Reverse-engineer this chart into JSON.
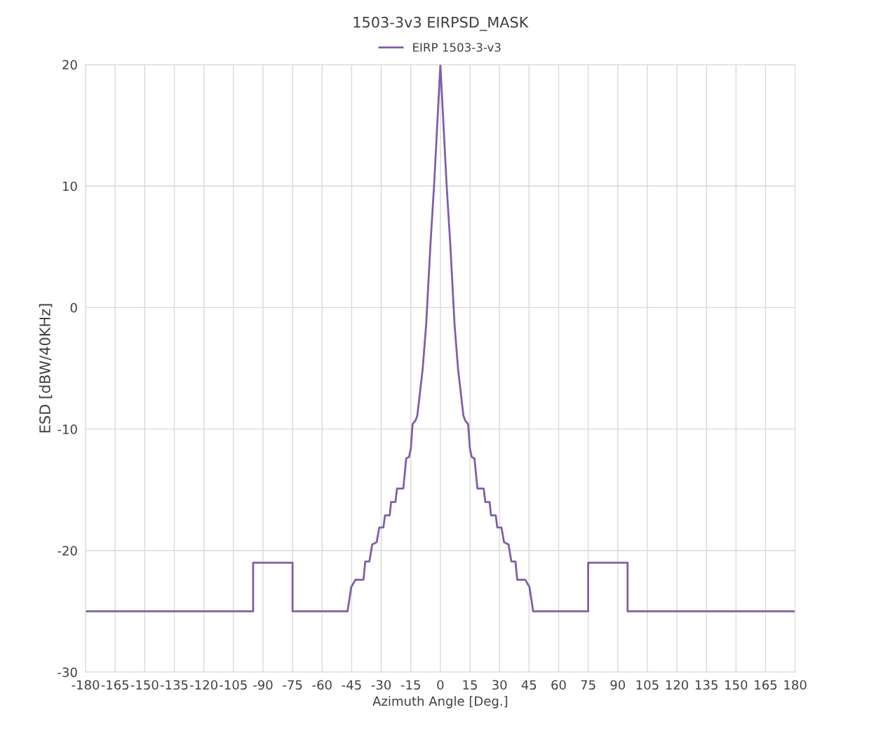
{
  "chart_data": {
    "type": "line",
    "title": "1503-3v3 EIRPSD_MASK",
    "xlabel": "Azimuth Angle [Deg.]",
    "ylabel": "ESD [dBW/40KHz]",
    "series": [
      {
        "name": "EIRP 1503-3-v3",
        "color": "#7f5fa8",
        "x": [
          -180,
          -95,
          -95,
          -75,
          -75,
          -47.1,
          -45.2,
          -43.1,
          -39.0,
          -38.1,
          -36.0,
          -34.6,
          -32.3,
          -31.0,
          -28.9,
          -28.1,
          -25.7,
          -25.0,
          -22.8,
          -22.0,
          -18.8,
          -17.3,
          -15.9,
          -15.0,
          -14.1,
          -12.6,
          -11.7,
          -9.0,
          -7.2,
          -5.0,
          -3.2,
          0,
          3.2,
          5.0,
          7.2,
          9.0,
          11.7,
          12.6,
          14.1,
          15.0,
          15.9,
          17.3,
          18.8,
          22.0,
          22.8,
          25.0,
          25.7,
          28.1,
          28.9,
          31.0,
          32.3,
          34.6,
          36.0,
          38.1,
          39.0,
          43.1,
          45.2,
          47.1,
          75,
          75,
          95,
          95,
          180
        ],
        "values": [
          -25,
          -25,
          -21,
          -21,
          -25,
          -25,
          -23.0,
          -22.4,
          -22.4,
          -20.9,
          -20.9,
          -19.5,
          -19.3,
          -18.1,
          -18.1,
          -17.1,
          -17.1,
          -16.0,
          -16.0,
          -14.9,
          -14.9,
          -12.4,
          -12.3,
          -11.6,
          -9.6,
          -9.3,
          -8.9,
          -5.1,
          -1.4,
          5.3,
          10,
          20,
          10,
          5.3,
          -1.4,
          -5.1,
          -8.9,
          -9.3,
          -9.6,
          -11.6,
          -12.3,
          -12.4,
          -14.9,
          -14.9,
          -16.0,
          -16.0,
          -17.1,
          -17.1,
          -18.1,
          -18.1,
          -19.3,
          -19.5,
          -20.9,
          -20.9,
          -22.4,
          -22.4,
          -23.0,
          -25,
          -25,
          -21,
          -21,
          -25,
          -25
        ]
      }
    ],
    "xlim": [
      -180,
      180
    ],
    "xticks": [
      -180,
      -165,
      -150,
      -135,
      -120,
      -105,
      -90,
      -75,
      -60,
      -45,
      -30,
      -15,
      0,
      15,
      30,
      45,
      60,
      75,
      90,
      105,
      120,
      135,
      150,
      165,
      180
    ],
    "ylim": [
      -30,
      20
    ],
    "yticks": [
      -30,
      -20,
      -10,
      0,
      10,
      20
    ],
    "grid": true,
    "legend": "top",
    "marker": "none",
    "line_style": "solid"
  }
}
